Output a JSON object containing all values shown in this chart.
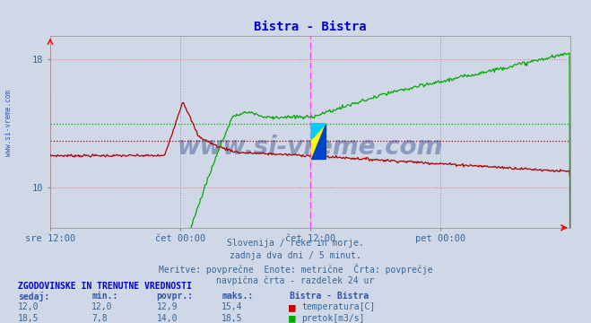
{
  "title": "Bistra - Bistra",
  "title_color": "#0000cc",
  "bg_color": "#d0d8e8",
  "plot_bg_color": "#d0d8e8",
  "xlabel_ticks": [
    "sre 12:00",
    "čet 00:00",
    "čet 12:00",
    "pet 00:00"
  ],
  "xlabel_tick_positions": [
    0.0,
    0.25,
    0.5,
    0.75
  ],
  "ymin": 7.5,
  "ymax": 19.5,
  "yticks": [
    10,
    18
  ],
  "temp_color": "#aa0000",
  "flow_color": "#00aa00",
  "temp_avg": 12.9,
  "flow_avg": 14.0,
  "vline_color": "#ff44ff",
  "vline_pos": 0.5,
  "watermark": "www.si-vreme.com",
  "watermark_color": "#1a3a7a",
  "subtitle1": "Slovenija / reke in morje.",
  "subtitle2": "zadnja dva dni / 5 minut.",
  "subtitle3": "Meritve: povprečne  Enote: metrične  Črta: povprečje",
  "subtitle4": "navpična črta - razdelek 24 ur",
  "table_header": "ZGODOVINSKE IN TRENUTNE VREDNOSTI",
  "col_headers": [
    "sedaj:",
    "min.:",
    "povpr.:",
    "maks.:",
    "Bistra - Bistra"
  ],
  "row1_vals": [
    "12,0",
    "12,0",
    "12,9",
    "15,4"
  ],
  "row2_vals": [
    "18,5",
    "7,8",
    "14,0",
    "18,5"
  ],
  "legend1": "temperatura[C]",
  "legend2": "pretok[m3/s]",
  "sidebar_text": "www.si-vreme.com",
  "sidebar_color": "#3355aa",
  "red_vline_color": "#ff6666",
  "rect_yellow": "#ffff00",
  "rect_blue": "#0044cc",
  "rect_cyan": "#00ccff"
}
